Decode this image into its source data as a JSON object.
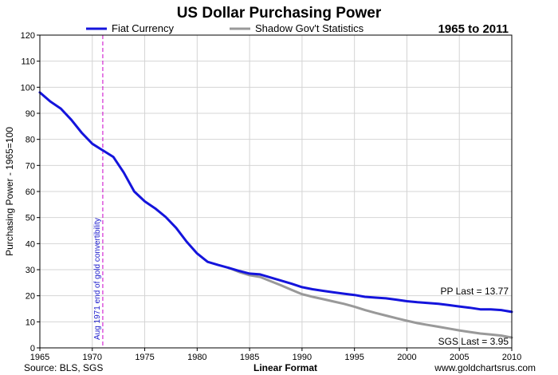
{
  "chart_data": {
    "type": "line",
    "title": "US Dollar Purchasing Power",
    "subtitle": "1965 to 2011",
    "ylabel": "Purchasing Power - 1965=100",
    "xlabel": "Linear Format",
    "xlim": [
      1965,
      2010
    ],
    "ylim": [
      0,
      120
    ],
    "x_ticks": [
      1965,
      1970,
      1975,
      1980,
      1985,
      1990,
      1995,
      2000,
      2005,
      2010
    ],
    "y_ticks": [
      0,
      10,
      20,
      30,
      40,
      50,
      60,
      70,
      80,
      90,
      100,
      110,
      120
    ],
    "grid": true,
    "legend_position": "top",
    "series": [
      {
        "name": "Fiat Currency",
        "color": "#1414dc",
        "x": [
          1965,
          1966,
          1967,
          1968,
          1969,
          1970,
          1971,
          1972,
          1973,
          1974,
          1975,
          1976,
          1977,
          1978,
          1979,
          1980,
          1981,
          1982,
          1983,
          1984,
          1985,
          1986,
          1987,
          1988,
          1989,
          1990,
          1991,
          1992,
          1993,
          1994,
          1995,
          1996,
          1997,
          1998,
          1999,
          2000,
          2001,
          2002,
          2003,
          2004,
          2005,
          2006,
          2007,
          2008,
          2009,
          2010
        ],
        "y": [
          98.0,
          94.5,
          91.8,
          87.5,
          82.5,
          78.3,
          75.8,
          73.3,
          67.3,
          60.0,
          56.2,
          53.5,
          50.2,
          46.0,
          40.7,
          36.2,
          33.0,
          31.8,
          30.7,
          29.5,
          28.5,
          28.2,
          27.0,
          25.8,
          24.6,
          23.3,
          22.5,
          21.9,
          21.3,
          20.8,
          20.3,
          19.6,
          19.3,
          19.0,
          18.5,
          17.9,
          17.5,
          17.2,
          16.9,
          16.4,
          15.9,
          15.4,
          14.8,
          14.8,
          14.5,
          13.8
        ]
      },
      {
        "name": "Shadow Gov't Statistics",
        "color": "#999999",
        "x": [
          1983,
          1984,
          1985,
          1986,
          1987,
          1988,
          1989,
          1990,
          1991,
          1992,
          1993,
          1994,
          1995,
          1996,
          1997,
          1998,
          1999,
          2000,
          2001,
          2002,
          2003,
          2004,
          2005,
          2006,
          2007,
          2008,
          2009,
          2010
        ],
        "y": [
          30.7,
          29.1,
          27.9,
          27.2,
          25.6,
          24.0,
          22.3,
          20.6,
          19.6,
          18.7,
          17.8,
          16.9,
          15.8,
          14.5,
          13.4,
          12.4,
          11.4,
          10.4,
          9.5,
          8.8,
          8.1,
          7.4,
          6.7,
          6.1,
          5.5,
          5.1,
          4.7,
          3.95
        ]
      }
    ],
    "vertical_marker": {
      "x": 1971,
      "label": "Aug 1971 end of gold convertibility",
      "color": "#cc00cc"
    },
    "annotations": {
      "pp_last": "PP Last = 13.77",
      "sgs_last": "SGS Last = 3.95"
    },
    "footer": {
      "source": "Source: BLS, SGS",
      "website": "www.goldchartsrus.com"
    }
  }
}
